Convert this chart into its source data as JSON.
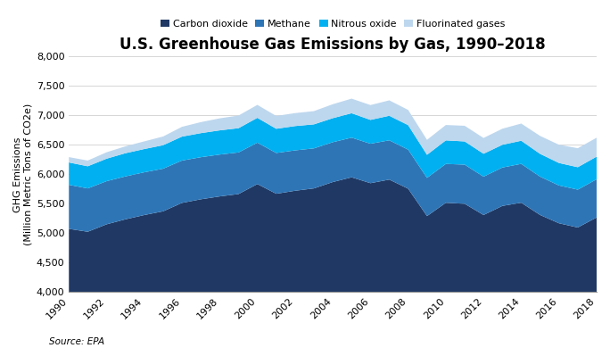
{
  "title": "U.S. Greenhouse Gas Emissions by Gas, 1990–2018",
  "ylabel": "GHG Emissions\n(Million Metric Tons of CO2e)",
  "source": "Source: EPA",
  "years": [
    1990,
    1991,
    1992,
    1993,
    1994,
    1995,
    1996,
    1997,
    1998,
    1999,
    2000,
    2001,
    2002,
    2003,
    2004,
    2005,
    2006,
    2007,
    2008,
    2009,
    2010,
    2011,
    2012,
    2013,
    2014,
    2015,
    2016,
    2017,
    2018
  ],
  "co2": [
    5075,
    5026,
    5152,
    5237,
    5310,
    5373,
    5516,
    5577,
    5626,
    5666,
    5836,
    5671,
    5722,
    5762,
    5870,
    5951,
    5851,
    5912,
    5757,
    5292,
    5518,
    5501,
    5310,
    5465,
    5519,
    5311,
    5170,
    5098,
    5269
  ],
  "ch4": [
    748,
    736,
    733,
    729,
    726,
    724,
    719,
    715,
    711,
    707,
    703,
    693,
    686,
    680,
    677,
    673,
    670,
    667,
    664,
    649,
    660,
    665,
    651,
    652,
    660,
    651,
    642,
    643,
    648
  ],
  "n2o": [
    380,
    376,
    382,
    394,
    395,
    399,
    407,
    409,
    411,
    412,
    422,
    411,
    413,
    408,
    408,
    415,
    405,
    417,
    416,
    392,
    400,
    394,
    390,
    386,
    393,
    387,
    382,
    381,
    385
  ],
  "fgas": [
    91,
    97,
    109,
    117,
    130,
    148,
    166,
    187,
    204,
    215,
    220,
    218,
    220,
    225,
    237,
    248,
    252,
    262,
    258,
    254,
    261,
    266,
    268,
    273,
    292,
    305,
    310,
    323,
    321
  ],
  "series_labels": [
    "Carbon dioxide",
    "Methane",
    "Nitrous oxide",
    "Fluorinated gases"
  ],
  "colors": [
    "#1f3864",
    "#2e75b6",
    "#00b0f0",
    "#bdd7ee"
  ],
  "ylim": [
    4000,
    8000
  ],
  "yticks": [
    4000,
    4500,
    5000,
    5500,
    6000,
    6500,
    7000,
    7500,
    8000
  ],
  "background_color": "#ffffff",
  "title_fontsize": 12,
  "legend_fontsize": 8,
  "axis_fontsize": 8,
  "ylabel_fontsize": 8
}
